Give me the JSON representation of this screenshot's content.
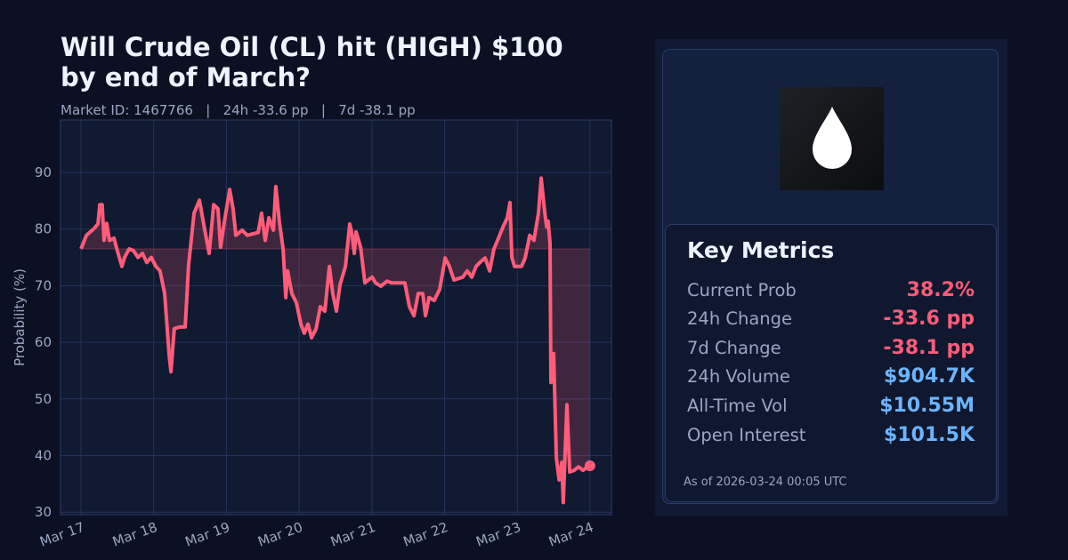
{
  "header": {
    "title": "Will Crude Oil (CL) hit (HIGH) $100 by end of March?",
    "subtitle": "Market ID: 1467766   |   24h -33.6 pp   |   7d -38.1 pp"
  },
  "colors": {
    "line": "#ff5c7a",
    "fill": "#ff5c7a",
    "positive": "#6cb4ff",
    "negative": "#ff5c7a",
    "grid": "#22345a",
    "background": "#0b1122"
  },
  "chart_data": {
    "type": "line",
    "title": "",
    "xlabel": "",
    "ylabel": "Probability (%)",
    "ylim": [
      29.5,
      99
    ],
    "grid": true,
    "yticks": [
      30,
      40,
      50,
      60,
      70,
      80,
      90
    ],
    "xticks": [
      "Mar 17",
      "Mar 18",
      "Mar 19",
      "Mar 20",
      "Mar 21",
      "Mar 22",
      "Mar 23",
      "Mar 24"
    ],
    "xtick_dates": [
      "2026-03-17T00:00",
      "2026-03-18T00:00",
      "2026-03-19T00:00",
      "2026-03-20T00:00",
      "2026-03-21T00:00",
      "2026-03-22T00:00",
      "2026-03-23T00:00",
      "2026-03-24T00:00"
    ],
    "fill_to_first_value": true,
    "x": [
      "2026-03-17T00:00",
      "2026-03-17T01:48",
      "2026-03-17T04:06",
      "2026-03-17T05:36",
      "2026-03-17T06:12",
      "2026-03-17T07:00",
      "2026-03-17T07:36",
      "2026-03-17T08:30",
      "2026-03-17T09:24",
      "2026-03-17T10:54",
      "2026-03-17T12:00",
      "2026-03-17T13:30",
      "2026-03-17T14:24",
      "2026-03-17T15:54",
      "2026-03-17T17:18",
      "2026-03-17T18:48",
      "2026-03-17T20:18",
      "2026-03-17T21:42",
      "2026-03-17T23:12",
      "2026-03-18T00:42",
      "2026-03-18T02:06",
      "2026-03-18T03:36",
      "2026-03-18T05:06",
      "2026-03-18T05:42",
      "2026-03-18T06:48",
      "2026-03-18T08:36",
      "2026-03-18T10:24",
      "2026-03-18T11:30",
      "2026-03-18T13:18",
      "2026-03-18T15:06",
      "2026-03-18T16:48",
      "2026-03-18T18:18",
      "2026-03-18T19:48",
      "2026-03-18T21:12",
      "2026-03-18T22:06",
      "2026-03-18T23:18",
      "2026-03-19T01:06",
      "2026-03-19T02:12",
      "2026-03-19T03:06",
      "2026-03-19T05:12",
      "2026-03-19T06:54",
      "2026-03-19T09:00",
      "2026-03-19T10:30",
      "2026-03-19T11:36",
      "2026-03-19T12:48",
      "2026-03-19T14:00",
      "2026-03-19T15:30",
      "2026-03-19T16:18",
      "2026-03-19T17:30",
      "2026-03-19T18:42",
      "2026-03-19T19:36",
      "2026-03-19T20:12",
      "2026-03-19T21:36",
      "2026-03-19T23:06",
      "2026-03-20T00:36",
      "2026-03-20T01:42",
      "2026-03-20T02:54",
      "2026-03-20T04:06",
      "2026-03-20T05:36",
      "2026-03-20T07:00",
      "2026-03-20T08:30",
      "2026-03-20T10:00",
      "2026-03-20T11:06",
      "2026-03-20T12:18",
      "2026-03-20T13:30",
      "2026-03-20T15:18",
      "2026-03-20T16:42",
      "2026-03-20T17:18",
      "2026-03-20T18:12",
      "2026-03-20T18:48",
      "2026-03-20T20:18",
      "2026-03-20T21:42",
      "2026-03-21T00:06",
      "2026-03-21T01:12",
      "2026-03-21T03:00",
      "2026-03-21T05:00",
      "2026-03-21T06:30",
      "2026-03-21T09:30",
      "2026-03-21T10:54",
      "2026-03-21T12:24",
      "2026-03-21T13:54",
      "2026-03-21T15:18",
      "2026-03-21T16:48",
      "2026-03-21T17:42",
      "2026-03-21T18:54",
      "2026-03-21T20:36",
      "2026-03-21T22:24",
      "2026-03-22T00:12",
      "2026-03-22T01:36",
      "2026-03-22T03:06",
      "2026-03-22T06:00",
      "2026-03-22T07:30",
      "2026-03-22T09:00",
      "2026-03-22T10:24",
      "2026-03-22T11:54",
      "2026-03-22T13:24",
      "2026-03-22T14:54",
      "2026-03-22T16:18",
      "2026-03-22T17:48",
      "2026-03-22T19:18",
      "2026-03-22T20:42",
      "2026-03-22T21:36",
      "2026-03-22T22:12",
      "2026-03-22T23:06",
      "2026-03-23T00:18",
      "2026-03-23T01:24",
      "2026-03-23T02:36",
      "2026-03-23T04:06",
      "2026-03-23T05:30",
      "2026-03-23T07:00",
      "2026-03-23T07:54",
      "2026-03-23T09:06",
      "2026-03-23T09:42",
      "2026-03-23T10:12",
      "2026-03-23T10:48",
      "2026-03-23T11:06",
      "2026-03-23T12:00",
      "2026-03-23T12:54",
      "2026-03-23T13:48",
      "2026-03-23T14:42",
      "2026-03-23T15:12",
      "2026-03-23T16:24",
      "2026-03-23T17:18",
      "2026-03-23T18:48",
      "2026-03-23T20:12",
      "2026-03-23T21:42",
      "2026-03-23T23:12",
      "2026-03-24T00:00"
    ],
    "y": [
      76.5,
      78.9,
      80,
      80.9,
      84.3,
      84.3,
      78,
      81,
      78,
      78.4,
      76.2,
      73.4,
      75,
      76.5,
      76.2,
      75,
      75.7,
      74.1,
      75,
      73.4,
      72.6,
      68.6,
      57.7,
      54.8,
      62.4,
      62.7,
      62.7,
      73.4,
      82.8,
      85.1,
      80,
      75.7,
      84.3,
      83.6,
      76.8,
      81.2,
      87,
      83.6,
      78.9,
      79.8,
      78.9,
      79.2,
      79.4,
      82.8,
      78,
      82,
      79.8,
      87.5,
      81.2,
      76.5,
      67.9,
      72.6,
      68.6,
      67,
      63.2,
      61.6,
      63.2,
      60.8,
      62.4,
      66.3,
      65.5,
      73.4,
      68.6,
      65.5,
      70.2,
      73.4,
      80.9,
      79.6,
      75.7,
      79.5,
      76.8,
      70.5,
      71.5,
      70.5,
      69.9,
      70.8,
      70.5,
      70.5,
      70.5,
      66.3,
      64.7,
      68.6,
      68.6,
      64.7,
      67.9,
      67.4,
      69.4,
      74.9,
      73.4,
      71,
      71.5,
      72.6,
      71.5,
      73.4,
      74.2,
      74.9,
      72.6,
      76.5,
      78.4,
      80.4,
      82,
      84.7,
      75,
      73.4,
      73.4,
      73.4,
      74.9,
      78.9,
      78,
      82.8,
      89,
      82.8,
      80.4,
      81.4,
      77.5,
      52.9,
      58,
      39.6,
      35.7,
      38.8,
      31.7,
      49,
      37.1,
      37.4,
      38,
      37.4,
      38,
      38.2
    ]
  },
  "market_icon": "oil-drop-icon",
  "metrics": {
    "title": "Key Metrics",
    "rows": [
      {
        "label": "Current Prob",
        "value": "38.2%",
        "tone": "negative"
      },
      {
        "label": "24h Change",
        "value": "-33.6 pp",
        "tone": "negative"
      },
      {
        "label": "7d Change",
        "value": "-38.1 pp",
        "tone": "negative"
      },
      {
        "label": "24h Volume",
        "value": "$904.7K",
        "tone": "positive"
      },
      {
        "label": "All-Time Vol",
        "value": "$10.55M",
        "tone": "positive"
      },
      {
        "label": "Open Interest",
        "value": "$101.5K",
        "tone": "positive"
      }
    ],
    "as_of": "As of 2026-03-24 00:05 UTC"
  }
}
